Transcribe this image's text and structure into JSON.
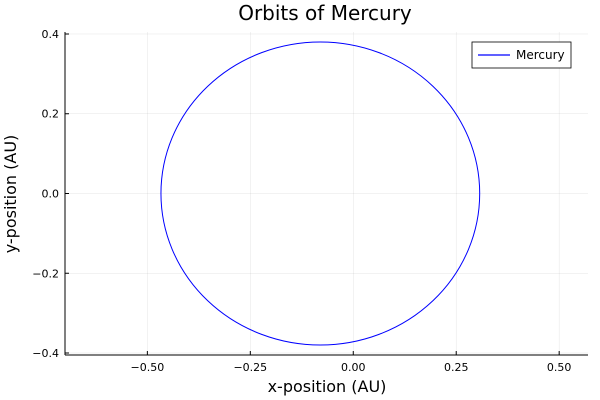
{
  "chart_data": {
    "type": "line",
    "title": "Orbits of Mercury",
    "xlabel": "x-position (AU)",
    "ylabel": "y-position (AU)",
    "xlim": [
      -0.7,
      0.57
    ],
    "ylim": [
      -0.405,
      0.405
    ],
    "xticks": [
      -0.5,
      -0.25,
      0.0,
      0.25,
      0.5
    ],
    "xtick_labels": [
      "−0.50",
      "−0.25",
      "0.00",
      "0.25",
      "0.50"
    ],
    "yticks": [
      -0.4,
      -0.2,
      0.0,
      0.2,
      0.4
    ],
    "ytick_labels": [
      "−0.4",
      "−0.2",
      "0.0",
      "0.2",
      "0.4"
    ],
    "grid": true,
    "legend_position": "top-right",
    "series": [
      {
        "name": "Mercury",
        "color": "#0000ff",
        "shape": "ellipse",
        "center": [
          -0.08,
          0.0
        ],
        "semi_axis_x": 0.387,
        "semi_axis_y": 0.38,
        "x_range": [
          -0.467,
          0.307
        ],
        "y_range": [
          -0.38,
          0.38
        ]
      }
    ]
  }
}
